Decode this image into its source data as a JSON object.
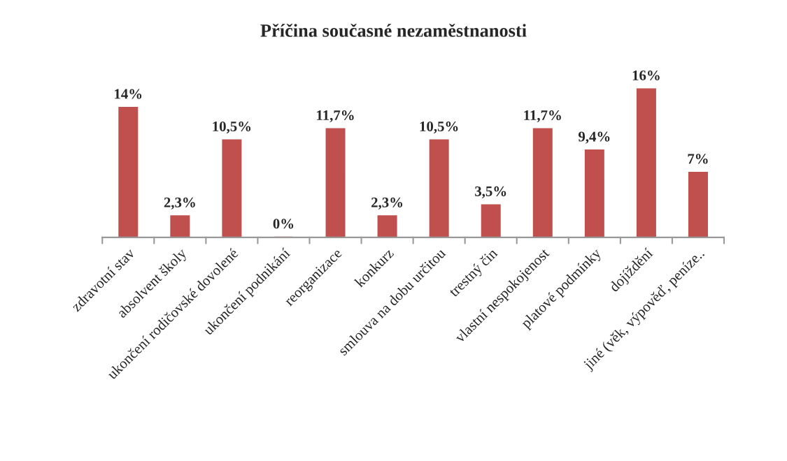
{
  "chart_data": {
    "type": "bar",
    "title": "Příčina současné nezaměstnanosti",
    "categories": [
      "zdravotní stav",
      "absolvent školy",
      "ukončení rodičovské dovolené",
      "ukončení podnikání",
      "reorganizace",
      "konkurz",
      "smlouva na dobu určitou",
      "trestný čin",
      "vlastní nespokojenost",
      "platové podmínky",
      "dojíždění",
      "jiné (věk, výpověď, peníze.."
    ],
    "values": [
      14,
      2.3,
      10.5,
      0,
      11.7,
      2.3,
      10.5,
      3.5,
      11.7,
      9.4,
      16,
      7
    ],
    "value_labels": [
      "14%",
      "2,3%",
      "10,5%",
      "0%",
      "11,7%",
      "2,3%",
      "10,5%",
      "3,5%",
      "11,7%",
      "9,4%",
      "16%",
      "7%"
    ],
    "color": "#c0504d",
    "grid": false,
    "legend": false
  }
}
